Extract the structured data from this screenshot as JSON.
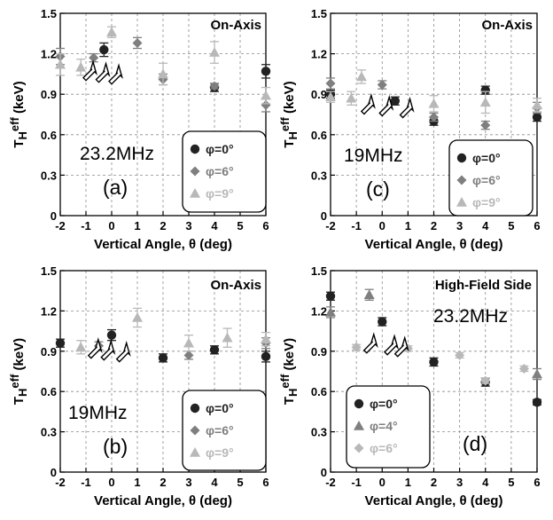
{
  "chart_data": [
    {
      "type": "scatter",
      "panel": "(a)",
      "title": "On-Axis",
      "frequency": "23.2MHz",
      "xlabel": "Vertical Angle, θ (deg)",
      "ylabel": "T_Heff (keV)",
      "xlim": [
        -2,
        6
      ],
      "ylim": [
        0,
        1.5
      ],
      "xticks": [
        "-2",
        "-1",
        "0",
        "1",
        "2",
        "3",
        "4",
        "5",
        "6"
      ],
      "yticks": [
        "0",
        "0.3",
        "0.6",
        "0.9",
        "1.2",
        "1.5"
      ],
      "grid": true,
      "legend_position": "bottom-right",
      "series": [
        {
          "name": "φ=0°",
          "marker": "circle",
          "color": "#222222",
          "x": [
            -0.3,
            4,
            6
          ],
          "y": [
            1.23,
            0.95,
            1.07
          ],
          "err": [
            0.05,
            0.03,
            0.05
          ]
        },
        {
          "name": "φ=6°",
          "marker": "diamond",
          "color": "#7f7f7f",
          "x": [
            -2,
            -0.7,
            1,
            2,
            4,
            6
          ],
          "y": [
            1.18,
            1.17,
            1.28,
            1.01,
            0.96,
            0.82
          ],
          "err": [
            0.06,
            0.03,
            0.04,
            0.04,
            0.02,
            0.05
          ]
        },
        {
          "name": "φ=9°",
          "marker": "triangle",
          "color": "#b8b8b8",
          "x": [
            -2,
            -1.2,
            0,
            2,
            4,
            6
          ],
          "y": [
            1.12,
            1.1,
            1.36,
            1.05,
            1.21,
            0.89
          ],
          "err": [
            0.08,
            0.06,
            0.04,
            0.08,
            0.08,
            0.06
          ]
        }
      ],
      "annotations": {
        "arrows_near_x": [
          -1,
          -0.5,
          0
        ]
      }
    },
    {
      "type": "scatter",
      "panel": "(c)",
      "title": "On-Axis",
      "frequency": "19MHz",
      "xlabel": "Vertical Angle, θ (deg)",
      "ylabel": "T_Heff (keV)",
      "xlim": [
        -2,
        6
      ],
      "ylim": [
        0,
        1.5
      ],
      "xticks": [
        "-2",
        "-1",
        "0",
        "1",
        "2",
        "3",
        "4",
        "5",
        "6"
      ],
      "yticks": [
        "0",
        "0.3",
        "0.6",
        "0.9",
        "1.2",
        "1.5"
      ],
      "grid": true,
      "legend_position": "bottom-right",
      "series": [
        {
          "name": "φ=0°",
          "marker": "circle",
          "color": "#222222",
          "x": [
            -2,
            0.5,
            2,
            4,
            6
          ],
          "y": [
            0.9,
            0.85,
            0.7,
            0.93,
            0.73
          ],
          "err": [
            0.03,
            0.03,
            0.03,
            0.03,
            0.03
          ]
        },
        {
          "name": "φ=6°",
          "marker": "diamond",
          "color": "#7f7f7f",
          "x": [
            -2,
            0,
            2,
            4,
            6
          ],
          "y": [
            0.98,
            0.97,
            0.73,
            0.67,
            0.8
          ],
          "err": [
            0.04,
            0.03,
            0.03,
            0.03,
            0.04
          ]
        },
        {
          "name": "φ=9°",
          "marker": "triangle",
          "color": "#b8b8b8",
          "x": [
            -2,
            -1.2,
            -0.8,
            2,
            4,
            6
          ],
          "y": [
            0.88,
            0.87,
            1.03,
            0.83,
            0.84,
            0.82
          ],
          "err": [
            0.04,
            0.05,
            0.05,
            0.06,
            0.08,
            0.05
          ]
        }
      ],
      "annotations": {
        "arrows_near_x": [
          -0.7,
          0,
          0.8
        ]
      }
    },
    {
      "type": "scatter",
      "panel": "(b)",
      "title": "On-Axis",
      "frequency": "19MHz",
      "xlabel": "Vertical Angle, θ (deg)",
      "ylabel": "T_Heff (keV)",
      "xlim": [
        -2,
        6
      ],
      "ylim": [
        0,
        1.5
      ],
      "xticks": [
        "-2",
        "-1",
        "0",
        "1",
        "2",
        "3",
        "4",
        "5",
        "6"
      ],
      "yticks": [
        "0",
        "0.3",
        "0.6",
        "0.9",
        "1.2",
        "1.5"
      ],
      "grid": true,
      "legend_position": "bottom-right",
      "series": [
        {
          "name": "φ=0°",
          "marker": "circle",
          "color": "#222222",
          "x": [
            -2,
            0,
            2,
            4,
            6
          ],
          "y": [
            0.96,
            1.02,
            0.85,
            0.91,
            0.86
          ],
          "err": [
            0.03,
            0.04,
            0.03,
            0.03,
            0.04
          ]
        },
        {
          "name": "φ=6°",
          "marker": "diamond",
          "color": "#7f7f7f",
          "x": [
            -0.5,
            3,
            6
          ],
          "y": [
            0.94,
            0.87,
            0.96
          ],
          "err": [
            0.03,
            0.03,
            0.04
          ]
        },
        {
          "name": "φ=9°",
          "marker": "triangle",
          "color": "#b8b8b8",
          "x": [
            -1.2,
            1,
            3,
            4.5,
            6
          ],
          "y": [
            0.93,
            1.15,
            0.96,
            1.0,
            0.99
          ],
          "err": [
            0.05,
            0.07,
            0.06,
            0.07,
            0.05
          ]
        }
      ],
      "annotations": {
        "arrows_near_x": [
          -0.8,
          -0.3,
          0.3
        ]
      }
    },
    {
      "type": "scatter",
      "panel": "(d)",
      "title": "High-Field Side",
      "frequency": "23.2MHz",
      "xlabel": "Vertical Angle, θ (deg)",
      "ylabel": "T_Heff (keV)",
      "xlim": [
        -2,
        6
      ],
      "ylim": [
        0,
        1.5
      ],
      "xticks": [
        "-2",
        "-1",
        "0",
        "1",
        "2",
        "3",
        "4",
        "5",
        "6"
      ],
      "yticks": [
        "0",
        "0.3",
        "0.6",
        "0.9",
        "1.2",
        "1.5"
      ],
      "grid": true,
      "legend_position": "bottom-left",
      "series": [
        {
          "name": "φ=0°",
          "marker": "circle",
          "color": "#222222",
          "x": [
            -2,
            0,
            2,
            4,
            6
          ],
          "y": [
            1.31,
            1.12,
            0.82,
            0.67,
            0.52
          ],
          "err": [
            0.03,
            0.03,
            0.03,
            0.03,
            0.02
          ]
        },
        {
          "name": "φ=4°",
          "marker": "triangle",
          "color": "#7f7f7f",
          "x": [
            -2,
            -0.5,
            6
          ],
          "y": [
            1.19,
            1.32,
            0.73
          ],
          "err": [
            0.04,
            0.04,
            0.04
          ]
        },
        {
          "name": "φ=6°",
          "marker": "diamond",
          "color": "#b8b8b8",
          "x": [
            -1,
            1,
            3,
            4,
            5.5
          ],
          "y": [
            0.93,
            0.92,
            0.87,
            0.68,
            0.77
          ],
          "err": [
            0.02,
            0.02,
            0.02,
            0.02,
            0.02
          ]
        }
      ],
      "annotations": {
        "arrows_near_x": [
          -0.6,
          0.2,
          0.6
        ]
      }
    }
  ]
}
